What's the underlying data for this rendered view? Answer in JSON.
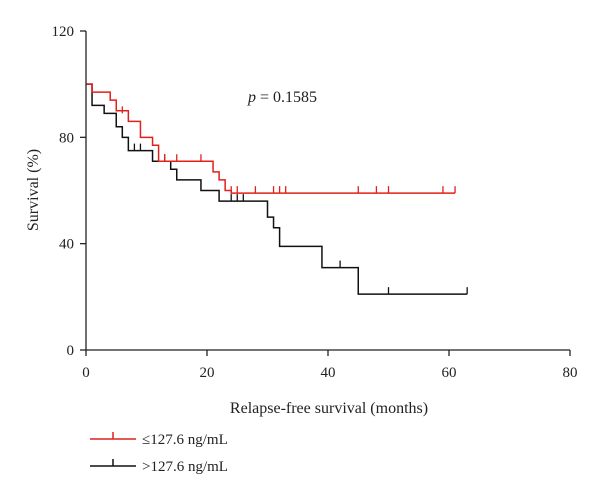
{
  "chart_data": {
    "type": "line",
    "xlabel": "Relapse-free survival (months)",
    "ylabel": "Survival (%)",
    "xlim": [
      0,
      80
    ],
    "ylim": [
      0,
      120
    ],
    "xticks": [
      "0",
      "20",
      "40",
      "60",
      "80"
    ],
    "yticks": [
      "0",
      "40",
      "80",
      "120"
    ],
    "annotation": {
      "symbol": "p",
      "text": " = 0.1585"
    },
    "grid": false,
    "legend_position": "bottom-left",
    "series": [
      {
        "name": "≤127.6 ng/mL",
        "color": "#e0201b",
        "steps": [
          [
            0,
            100
          ],
          [
            1,
            97
          ],
          [
            4,
            94
          ],
          [
            5,
            90
          ],
          [
            7,
            86
          ],
          [
            9,
            80
          ],
          [
            11,
            77
          ],
          [
            12,
            71
          ],
          [
            21,
            67
          ],
          [
            22,
            64
          ],
          [
            23,
            60
          ],
          [
            24,
            59
          ],
          [
            61,
            59
          ]
        ],
        "censored": [
          [
            6,
            89
          ],
          [
            13,
            71
          ],
          [
            15,
            71
          ],
          [
            19,
            71
          ],
          [
            24,
            59
          ],
          [
            25,
            59
          ],
          [
            28,
            59
          ],
          [
            31,
            59
          ],
          [
            32,
            59
          ],
          [
            33,
            59
          ],
          [
            45,
            59
          ],
          [
            48,
            59
          ],
          [
            50,
            59
          ],
          [
            59,
            59
          ],
          [
            61,
            59
          ]
        ]
      },
      {
        "name": ">127.6 ng/mL",
        "color": "#111111",
        "steps": [
          [
            0,
            100
          ],
          [
            1,
            92
          ],
          [
            3,
            89
          ],
          [
            5,
            84
          ],
          [
            6,
            80
          ],
          [
            7,
            75
          ],
          [
            11,
            71
          ],
          [
            14,
            68
          ],
          [
            15,
            64
          ],
          [
            19,
            60
          ],
          [
            22,
            56
          ],
          [
            30,
            50
          ],
          [
            31,
            46
          ],
          [
            32,
            39
          ],
          [
            39,
            31
          ],
          [
            45,
            21
          ],
          [
            63,
            21
          ]
        ],
        "censored": [
          [
            8,
            75
          ],
          [
            9,
            75
          ],
          [
            13,
            71
          ],
          [
            24,
            56
          ],
          [
            25,
            56
          ],
          [
            26,
            56
          ],
          [
            42,
            31
          ],
          [
            50,
            21
          ],
          [
            63,
            21
          ]
        ]
      }
    ]
  }
}
